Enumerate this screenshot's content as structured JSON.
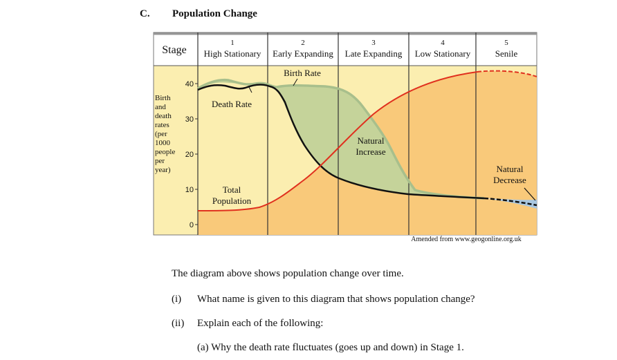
{
  "section": {
    "letter": "C.",
    "title": "Population Change"
  },
  "diagram": {
    "stage_label": "Stage",
    "stages": [
      {
        "num": "1",
        "name": "High Stationary"
      },
      {
        "num": "2",
        "name": "Early Expanding"
      },
      {
        "num": "3",
        "name": "Late Expanding"
      },
      {
        "num": "4",
        "name": "Low Stationary"
      },
      {
        "num": "5",
        "name": "Senile"
      }
    ],
    "y_axis_label": [
      "Birth",
      "and",
      "death",
      "rates",
      "(per",
      "1000",
      "people",
      "per",
      "year)"
    ],
    "y_ticks": [
      "40",
      "30",
      "20",
      "10",
      "0"
    ],
    "labels": {
      "birth_rate": "Birth Rate",
      "death_rate": "Death Rate",
      "total_population": [
        "Total",
        "Population"
      ],
      "natural_increase": [
        "Natural",
        "Increase"
      ],
      "natural_decrease": [
        "Natural",
        "Decrease"
      ]
    },
    "source": "Amended from www.geogonline.org.uk",
    "colors": {
      "background": "#fbeeb0",
      "header": "#ffffff",
      "population_fill": "#f9c97a",
      "natural_increase_fill": "#c5d39a",
      "birth_line": "#a8bf8c",
      "death_line": "#111111",
      "population_line": "#e0301e",
      "natural_decrease_fill": "#a9c7e0"
    }
  },
  "text": {
    "intro": "The diagram above shows population change over time.",
    "q1_num": "(i)",
    "q1_text": "What name is given to this diagram that shows population change?",
    "q2_num": "(ii)",
    "q2_text": "Explain each of the following:",
    "q2a": "(a) Why the death rate fluctuates (goes up and down) in Stage 1."
  }
}
